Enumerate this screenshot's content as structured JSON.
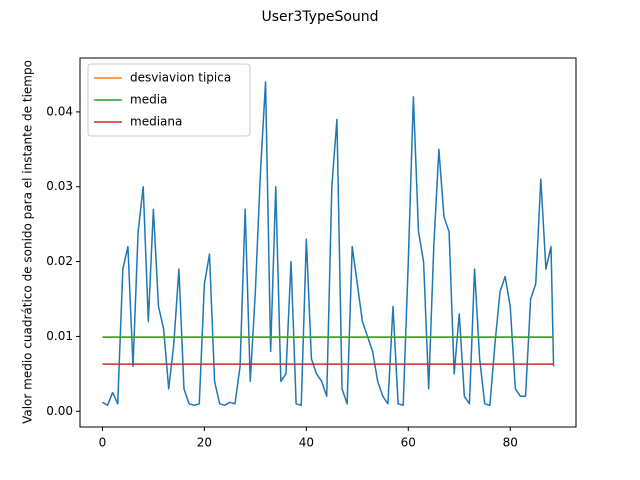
{
  "chart_data": {
    "type": "line",
    "title": "User3TypeSound",
    "y_label": "Valor medio cuadrático de sonido para el instante de tiempo",
    "legend": "upper left",
    "xlim": [
      -4.4,
      92.9
    ],
    "ylim": [
      -0.0021,
      0.0472
    ],
    "xticks": [
      0,
      20,
      40,
      60,
      80
    ],
    "yticks": [
      {
        "value": 0,
        "label": "0.00"
      },
      {
        "value": 0.01,
        "label": "0.01"
      },
      {
        "value": 0.02,
        "label": "0.02"
      },
      {
        "value": 0.03,
        "label": "0.03"
      },
      {
        "value": 0.04,
        "label": "0.04"
      }
    ],
    "series": [
      {
        "color": "#1f77b4",
        "x": [
          0,
          1,
          2,
          3,
          4,
          5,
          6,
          7,
          8,
          9,
          10,
          11,
          12,
          13,
          14,
          15,
          16,
          17,
          18,
          19,
          20,
          21,
          22,
          23,
          24,
          25,
          26,
          27,
          28,
          29,
          30,
          31,
          32,
          33,
          34,
          35,
          36,
          37,
          38,
          39,
          40,
          41,
          42,
          43,
          44,
          45,
          46,
          47,
          48,
          49,
          50,
          51,
          52,
          53,
          54,
          55,
          56,
          57,
          58,
          59,
          60,
          61,
          62,
          63,
          64,
          65,
          66,
          67,
          68,
          69,
          70,
          71,
          72,
          73,
          74,
          75,
          76,
          77,
          78,
          79,
          80,
          81,
          82,
          83,
          84,
          85,
          86,
          87,
          88,
          88.5
        ],
        "values": [
          0.0012,
          0.0008,
          0.0025,
          0.001,
          0.019,
          0.022,
          0.006,
          0.024,
          0.03,
          0.012,
          0.027,
          0.014,
          0.011,
          0.003,
          0.009,
          0.019,
          0.003,
          0.001,
          0.0008,
          0.001,
          0.017,
          0.021,
          0.004,
          0.001,
          0.0008,
          0.0012,
          0.001,
          0.006,
          0.027,
          0.004,
          0.016,
          0.032,
          0.044,
          0.008,
          0.03,
          0.004,
          0.005,
          0.02,
          0.001,
          0.0008,
          0.023,
          0.007,
          0.005,
          0.004,
          0.002,
          0.03,
          0.039,
          0.003,
          0.001,
          0.022,
          0.017,
          0.012,
          0.01,
          0.008,
          0.004,
          0.002,
          0.001,
          0.014,
          0.001,
          0.0008,
          0.02,
          0.042,
          0.024,
          0.02,
          0.003,
          0.022,
          0.035,
          0.026,
          0.024,
          0.005,
          0.013,
          0.002,
          0.001,
          0.019,
          0.007,
          0.001,
          0.0008,
          0.009,
          0.016,
          0.018,
          0.014,
          0.003,
          0.002,
          0.002,
          0.015,
          0.017,
          0.031,
          0.019,
          0.022,
          0.006
        ]
      },
      {
        "name": "desviavion tipica",
        "color": "#ff7f0e",
        "x": [
          0,
          88.5
        ],
        "values": [
          0.0099,
          0.0099
        ]
      },
      {
        "name": "media",
        "color": "#2ca02c",
        "x": [
          0,
          88.5
        ],
        "values": [
          0.0099,
          0.0099
        ]
      },
      {
        "name": "mediana",
        "color": "#d62728",
        "x": [
          0,
          88.5
        ],
        "values": [
          0.0063,
          0.0063
        ]
      }
    ]
  }
}
